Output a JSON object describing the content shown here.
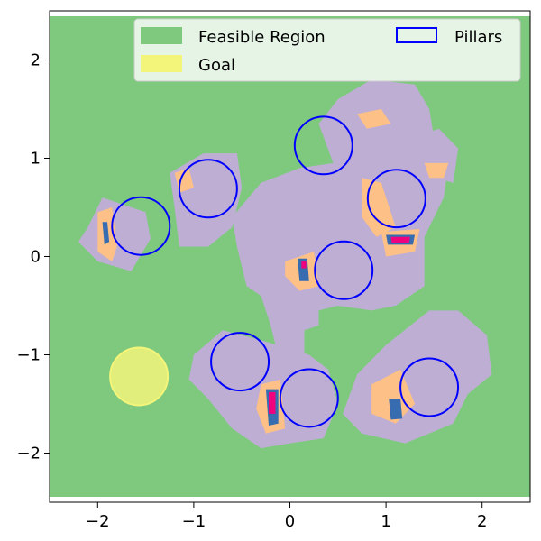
{
  "chart_data": {
    "type": "contour",
    "title": "",
    "xlabel": "",
    "ylabel": "",
    "xlim": [
      -2.5,
      2.5
    ],
    "ylim": [
      -2.5,
      2.5
    ],
    "x_ticks": [
      -2,
      -1,
      0,
      1,
      2
    ],
    "y_ticks": [
      -2,
      -1,
      0,
      1,
      2
    ],
    "x_tick_labels": [
      "−2",
      "−1",
      "0",
      "1",
      "2"
    ],
    "y_tick_labels": [
      "−2",
      "−1",
      "0",
      "1",
      "2"
    ],
    "grid": false,
    "legend_position": "top-right",
    "legend": [
      {
        "label": "Feasible Region",
        "style": "filled",
        "color": "#7fc97f"
      },
      {
        "label": "Goal",
        "style": "filled",
        "color": "#f2f57a"
      },
      {
        "label": "Pillars",
        "style": "outline",
        "color": "#0000ff"
      }
    ],
    "colors": {
      "feasible": "#7fc97f",
      "level1": "#beaed4",
      "level2": "#fdc086",
      "level3": "#ffff99",
      "level4": "#386cb0",
      "level5": "#f0027f",
      "pillar": "#0000ff",
      "goal": "#f2f57a"
    },
    "goal": {
      "x": -1.57,
      "y": -1.22,
      "r": 0.3
    },
    "pillars": [
      {
        "x": -1.55,
        "y": 0.31,
        "r": 0.3
      },
      {
        "x": -0.85,
        "y": 0.69,
        "r": 0.3
      },
      {
        "x": 0.35,
        "y": 1.13,
        "r": 0.3
      },
      {
        "x": 1.11,
        "y": 0.59,
        "r": 0.3
      },
      {
        "x": 0.56,
        "y": -0.14,
        "r": 0.3
      },
      {
        "x": -0.52,
        "y": -1.07,
        "r": 0.3
      },
      {
        "x": 0.2,
        "y": -1.44,
        "r": 0.3
      },
      {
        "x": 1.45,
        "y": -1.33,
        "r": 0.3
      }
    ],
    "regions": [
      {
        "level": "level1",
        "points": [
          [
            -1.45,
            0.18
          ],
          [
            -1.5,
            0.45
          ],
          [
            -1.95,
            0.6
          ],
          [
            -2.1,
            0.3
          ],
          [
            -2.2,
            0.15
          ],
          [
            -2.0,
            -0.05
          ],
          [
            -1.65,
            -0.15
          ]
        ]
      },
      {
        "level": "level1",
        "points": [
          [
            -1.25,
            0.85
          ],
          [
            -0.9,
            1.05
          ],
          [
            -0.55,
            1.05
          ],
          [
            -0.5,
            0.7
          ],
          [
            -0.6,
            0.3
          ],
          [
            -0.85,
            0.1
          ],
          [
            -1.15,
            0.1
          ],
          [
            -1.2,
            0.5
          ]
        ]
      },
      {
        "level": "level1",
        "points": [
          [
            -0.6,
            0.4
          ],
          [
            -0.3,
            0.75
          ],
          [
            0.1,
            0.9
          ],
          [
            0.45,
            0.95
          ],
          [
            0.3,
            1.35
          ],
          [
            0.5,
            1.6
          ],
          [
            0.85,
            1.8
          ],
          [
            1.3,
            1.75
          ],
          [
            1.45,
            1.5
          ],
          [
            1.5,
            1.2
          ],
          [
            1.65,
            0.95
          ],
          [
            1.6,
            0.6
          ],
          [
            1.4,
            0.2
          ],
          [
            1.4,
            -0.3
          ],
          [
            1.1,
            -0.5
          ],
          [
            0.85,
            -0.55
          ],
          [
            0.5,
            -0.5
          ],
          [
            0.3,
            -0.55
          ],
          [
            0.3,
            -0.7
          ],
          [
            0.15,
            -0.75
          ],
          [
            0.15,
            -1.1
          ],
          [
            -0.1,
            -1.1
          ],
          [
            -0.2,
            -0.7
          ],
          [
            -0.3,
            -0.4
          ],
          [
            -0.45,
            -0.3
          ],
          [
            -0.55,
            0.1
          ]
        ]
      },
      {
        "level": "level1",
        "points": [
          [
            1.25,
            1.2
          ],
          [
            1.55,
            1.3
          ],
          [
            1.75,
            1.1
          ],
          [
            1.7,
            0.75
          ],
          [
            1.35,
            0.85
          ]
        ]
      },
      {
        "level": "level1",
        "points": [
          [
            1.0,
            -0.9
          ],
          [
            1.45,
            -0.55
          ],
          [
            1.75,
            -0.55
          ],
          [
            2.05,
            -0.8
          ],
          [
            2.1,
            -1.2
          ],
          [
            1.85,
            -1.4
          ],
          [
            1.7,
            -1.7
          ],
          [
            1.2,
            -1.9
          ],
          [
            0.75,
            -1.8
          ],
          [
            0.55,
            -1.6
          ],
          [
            0.7,
            -1.2
          ]
        ]
      },
      {
        "level": "level1",
        "points": [
          [
            -1.0,
            -1.0
          ],
          [
            -0.7,
            -0.75
          ],
          [
            -0.3,
            -0.85
          ],
          [
            0.2,
            -1.0
          ],
          [
            0.4,
            -1.15
          ],
          [
            0.5,
            -1.5
          ],
          [
            0.35,
            -1.85
          ],
          [
            0.0,
            -1.9
          ],
          [
            -0.3,
            -1.95
          ],
          [
            -0.6,
            -1.75
          ],
          [
            -0.85,
            -1.45
          ],
          [
            -1.05,
            -1.25
          ]
        ]
      }
    ],
    "regions_level2": [
      {
        "level": "level2",
        "points": [
          [
            -2.0,
            0.45
          ],
          [
            -1.85,
            0.5
          ],
          [
            -1.8,
            0.1
          ],
          [
            -1.85,
            -0.05
          ],
          [
            -2.0,
            0.05
          ]
        ]
      },
      {
        "level": "level2",
        "points": [
          [
            -1.2,
            0.85
          ],
          [
            -1.05,
            0.9
          ],
          [
            -1.0,
            0.7
          ],
          [
            -1.15,
            0.65
          ]
        ]
      },
      {
        "level": "level2",
        "points": [
          [
            0.75,
            0.8
          ],
          [
            0.95,
            0.75
          ],
          [
            1.1,
            0.3
          ],
          [
            0.9,
            0.2
          ],
          [
            0.75,
            0.4
          ]
        ]
      },
      {
        "level": "level2",
        "points": [
          [
            0.95,
            0.25
          ],
          [
            1.35,
            0.28
          ],
          [
            1.3,
            0.05
          ],
          [
            1.0,
            0.0
          ]
        ]
      },
      {
        "level": "level2",
        "points": [
          [
            -0.05,
            -0.05
          ],
          [
            0.25,
            0.05
          ],
          [
            0.3,
            -0.3
          ],
          [
            0.1,
            -0.35
          ],
          [
            -0.05,
            -0.2
          ]
        ]
      },
      {
        "level": "level2",
        "points": [
          [
            -0.3,
            -1.3
          ],
          [
            -0.1,
            -1.25
          ],
          [
            -0.05,
            -1.75
          ],
          [
            -0.25,
            -1.8
          ],
          [
            -0.35,
            -1.55
          ]
        ]
      },
      {
        "level": "level2",
        "points": [
          [
            0.85,
            -1.3
          ],
          [
            1.15,
            -1.15
          ],
          [
            1.3,
            -1.5
          ],
          [
            1.1,
            -1.7
          ],
          [
            0.85,
            -1.6
          ]
        ]
      },
      {
        "level": "level2",
        "points": [
          [
            0.7,
            1.45
          ],
          [
            0.95,
            1.5
          ],
          [
            1.05,
            1.35
          ],
          [
            0.8,
            1.3
          ]
        ]
      },
      {
        "level": "level2",
        "points": [
          [
            1.4,
            0.95
          ],
          [
            1.65,
            0.95
          ],
          [
            1.6,
            0.8
          ],
          [
            1.45,
            0.8
          ]
        ]
      }
    ],
    "regions_level4": [
      {
        "level": "level4",
        "points": [
          [
            -1.95,
            0.35
          ],
          [
            -1.9,
            0.35
          ],
          [
            -1.88,
            0.15
          ],
          [
            -1.93,
            0.12
          ]
        ]
      },
      {
        "level": "level4",
        "points": [
          [
            0.08,
            -0.02
          ],
          [
            0.18,
            -0.02
          ],
          [
            0.2,
            -0.25
          ],
          [
            0.1,
            -0.25
          ]
        ]
      },
      {
        "level": "level4",
        "points": [
          [
            -0.25,
            -1.35
          ],
          [
            -0.12,
            -1.35
          ],
          [
            -0.12,
            -1.7
          ],
          [
            -0.22,
            -1.72
          ]
        ]
      },
      {
        "level": "level4",
        "points": [
          [
            1.03,
            -1.45
          ],
          [
            1.15,
            -1.45
          ],
          [
            1.17,
            -1.65
          ],
          [
            1.05,
            -1.66
          ]
        ]
      },
      {
        "level": "level4",
        "points": [
          [
            1.0,
            0.22
          ],
          [
            1.3,
            0.22
          ],
          [
            1.28,
            0.12
          ],
          [
            1.02,
            0.12
          ]
        ]
      }
    ],
    "regions_level5": [
      {
        "level": "level5",
        "points": [
          [
            0.12,
            -0.05
          ],
          [
            0.17,
            -0.05
          ],
          [
            0.17,
            -0.12
          ],
          [
            0.12,
            -0.12
          ]
        ]
      },
      {
        "level": "level5",
        "points": [
          [
            -0.22,
            -1.38
          ],
          [
            -0.15,
            -1.38
          ],
          [
            -0.15,
            -1.6
          ],
          [
            -0.22,
            -1.6
          ]
        ]
      },
      {
        "level": "level5",
        "points": [
          [
            1.05,
            0.2
          ],
          [
            1.25,
            0.2
          ],
          [
            1.24,
            0.14
          ],
          [
            1.06,
            0.14
          ]
        ]
      }
    ]
  }
}
